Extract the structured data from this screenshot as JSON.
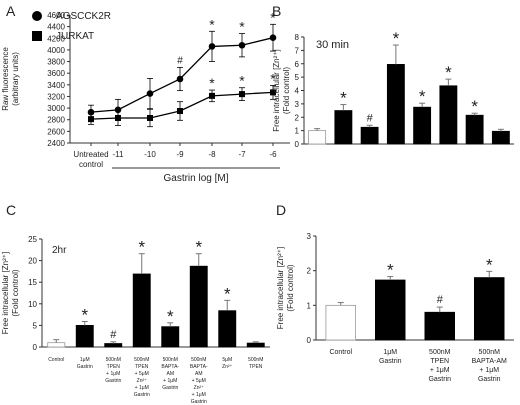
{
  "panels": {
    "A": {
      "letter": "A"
    },
    "B": {
      "letter": "B",
      "note": "30 min"
    },
    "C": {
      "letter": "C",
      "note": "2hr"
    },
    "D": {
      "letter": "D"
    }
  },
  "chart_data": [
    {
      "panel": "A",
      "type": "line",
      "ylabel": "Raw fluorescence",
      "ylabel2": "(arbitrary units)",
      "xlabel": "Gastrin log [M]",
      "ylim": [
        2400,
        4600
      ],
      "yticks": [
        2400,
        2600,
        2800,
        3000,
        3200,
        3400,
        3600,
        3800,
        4000,
        4200,
        4400,
        4600
      ],
      "categories": [
        "Untreated\ncontrol",
        "-11",
        "-10",
        "-9",
        "-8",
        "-7",
        "-6"
      ],
      "legend_position": "top-left",
      "series": [
        {
          "name": "AGSCCK2R",
          "marker": "circle",
          "values": [
            2930,
            2970,
            3250,
            3500,
            4060,
            4080,
            4210
          ],
          "errors": [
            120,
            180,
            260,
            200,
            260,
            200,
            230
          ],
          "annotations": [
            "",
            "",
            "",
            "#",
            "*",
            "*",
            "*"
          ]
        },
        {
          "name": "JURKAT",
          "marker": "square",
          "values": [
            2810,
            2830,
            2830,
            2950,
            3210,
            3240,
            3270
          ],
          "errors": [
            90,
            130,
            150,
            160,
            100,
            110,
            120
          ],
          "annotations": [
            "",
            "",
            "",
            "",
            "*",
            "*",
            "*"
          ]
        }
      ]
    },
    {
      "panel": "B",
      "type": "bar",
      "ylabel": "Free intracellular [Zn²⁺]",
      "ylabel2": "(Fold control)",
      "ylim": [
        0,
        8
      ],
      "yticks": [
        0,
        1,
        2,
        3,
        4,
        5,
        6,
        7,
        8
      ],
      "categories": [
        "",
        "",
        "",
        "",
        "",
        "",
        "",
        ""
      ],
      "values": [
        1.0,
        2.5,
        1.25,
        5.95,
        2.75,
        4.35,
        2.15,
        0.95
      ],
      "errors": [
        0.15,
        0.45,
        0.15,
        1.45,
        0.3,
        0.5,
        0.15,
        0.15
      ],
      "fills": [
        "white",
        "black",
        "black",
        "black",
        "black",
        "black",
        "black",
        "black"
      ],
      "annotations": [
        "",
        "*",
        "#",
        "*",
        "*",
        "*",
        "*",
        ""
      ]
    },
    {
      "panel": "C",
      "type": "bar",
      "ylabel": "Free intracellular [Zn²⁺]",
      "ylabel2": "(Fold control)",
      "ylim": [
        0,
        25
      ],
      "yticks": [
        0,
        5,
        10,
        15,
        20,
        25
      ],
      "categories": [
        [
          "Control"
        ],
        [
          "1μM",
          "Gastrin"
        ],
        [
          "500nM",
          "TPEN",
          "+ 1μM",
          "Gastrin"
        ],
        [
          "500nM",
          "TPEN",
          "+ 5μM",
          "Zn²⁺",
          "+ 1μM",
          "Gastrin"
        ],
        [
          "500nM",
          "BAPTA-",
          "AM",
          "+ 1μM",
          "Gastrin"
        ],
        [
          "500nM",
          "BAPTA-",
          "AM",
          "+ 5μM",
          "Zn²⁺",
          "+ 1μM",
          "Gastrin"
        ],
        [
          "5μM",
          "Zn²⁺"
        ],
        [
          "500nM",
          "TPEN"
        ]
      ],
      "values": [
        1.0,
        5.0,
        0.8,
        16.9,
        4.7,
        18.7,
        8.4,
        0.9
      ],
      "errors": [
        0.7,
        0.9,
        0.4,
        4.7,
        0.9,
        2.9,
        2.4,
        0.3
      ],
      "fills": [
        "white",
        "black",
        "black",
        "black",
        "black",
        "black",
        "black",
        "black"
      ],
      "annotations": [
        "",
        "*",
        "#",
        "*",
        "*",
        "*",
        "*",
        ""
      ]
    },
    {
      "panel": "D",
      "type": "bar",
      "ylabel": "Free intracellular [Zn²⁺]",
      "ylabel2": "(Fold control)",
      "ylim": [
        0,
        3
      ],
      "yticks": [
        0,
        1,
        2,
        3
      ],
      "categories": [
        [
          "Control"
        ],
        [
          "1μM",
          "Gastrin"
        ],
        [
          "500nM",
          "TPEN",
          "+ 1μM",
          "Gastrin"
        ],
        [
          "500nM",
          "BAPTA-AM",
          "+ 1μM",
          "Gastrin"
        ]
      ],
      "values": [
        1.0,
        1.73,
        0.8,
        1.8
      ],
      "errors": [
        0.08,
        0.1,
        0.15,
        0.18
      ],
      "fills": [
        "white",
        "black",
        "black",
        "black"
      ],
      "annotations": [
        "",
        "*",
        "#",
        "*"
      ]
    }
  ]
}
